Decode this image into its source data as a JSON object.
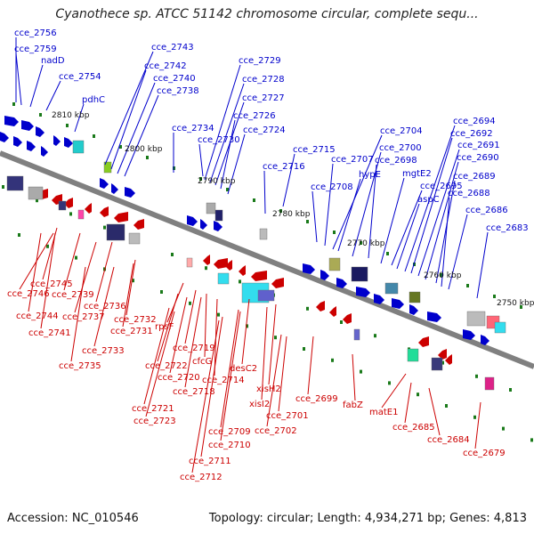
{
  "title": "Cyanothece sp. ATCC 51142 chromosome circular, complete sequ...",
  "footer": {
    "accession": "Accession: NC_010546",
    "stats": "Topology: circular; Length: 4,934,271 bp; Genes: 4,813"
  },
  "colors": {
    "forward": "#0000cc",
    "reverse": "#cc0000",
    "backbone": "#808080",
    "tick": "#1a7a1a"
  },
  "kbp_labels": [
    "2810 kbp",
    "2800 kbp",
    "2790 kbp",
    "2780 kbp",
    "2770 kbp",
    "2760 kbp",
    "2750 kbp"
  ],
  "forward_genes": [
    "cce_2756",
    "cce_2759",
    "nadD",
    "cce_2754",
    "pdhC",
    "cce_2743",
    "cce_2742",
    "cce_2740",
    "cce_2738",
    "cce_2734",
    "cce_2730",
    "cce_2729",
    "cce_2728",
    "cce_2727",
    "cce_2726",
    "cce_2724",
    "cce_2716",
    "cce_2715",
    "cce_2708",
    "cce_2707",
    "cce_2704",
    "hypE",
    "cce_2700",
    "cce_2698",
    "mgtE2",
    "cce_2695",
    "aspC",
    "cce_2694",
    "cce_2692",
    "cce_2691",
    "cce_2690",
    "cce_2689",
    "cce_2688",
    "cce_2686",
    "cce_2683"
  ],
  "reverse_genes": [
    "cce_2745",
    "cce_2746",
    "cce_2739",
    "cce_2744",
    "cce_2736",
    "cce_2737",
    "cce_2741",
    "cce_2732",
    "cce_2731",
    "cce_2733",
    "cce_2735",
    "rpsF",
    "cce_2719",
    "cce_2722",
    "cfcG",
    "cce_2720",
    "cce_2718",
    "cce_2714",
    "desC2",
    "cce_2721",
    "xisH2",
    "cce_2723",
    "xisI2",
    "cce_2699",
    "cce_2701",
    "fabZ",
    "cce_2702",
    "cce_2709",
    "matE1",
    "cce_2710",
    "cce_2685",
    "cce_2684",
    "cce_2711",
    "cce_2679",
    "cce_2712"
  ]
}
